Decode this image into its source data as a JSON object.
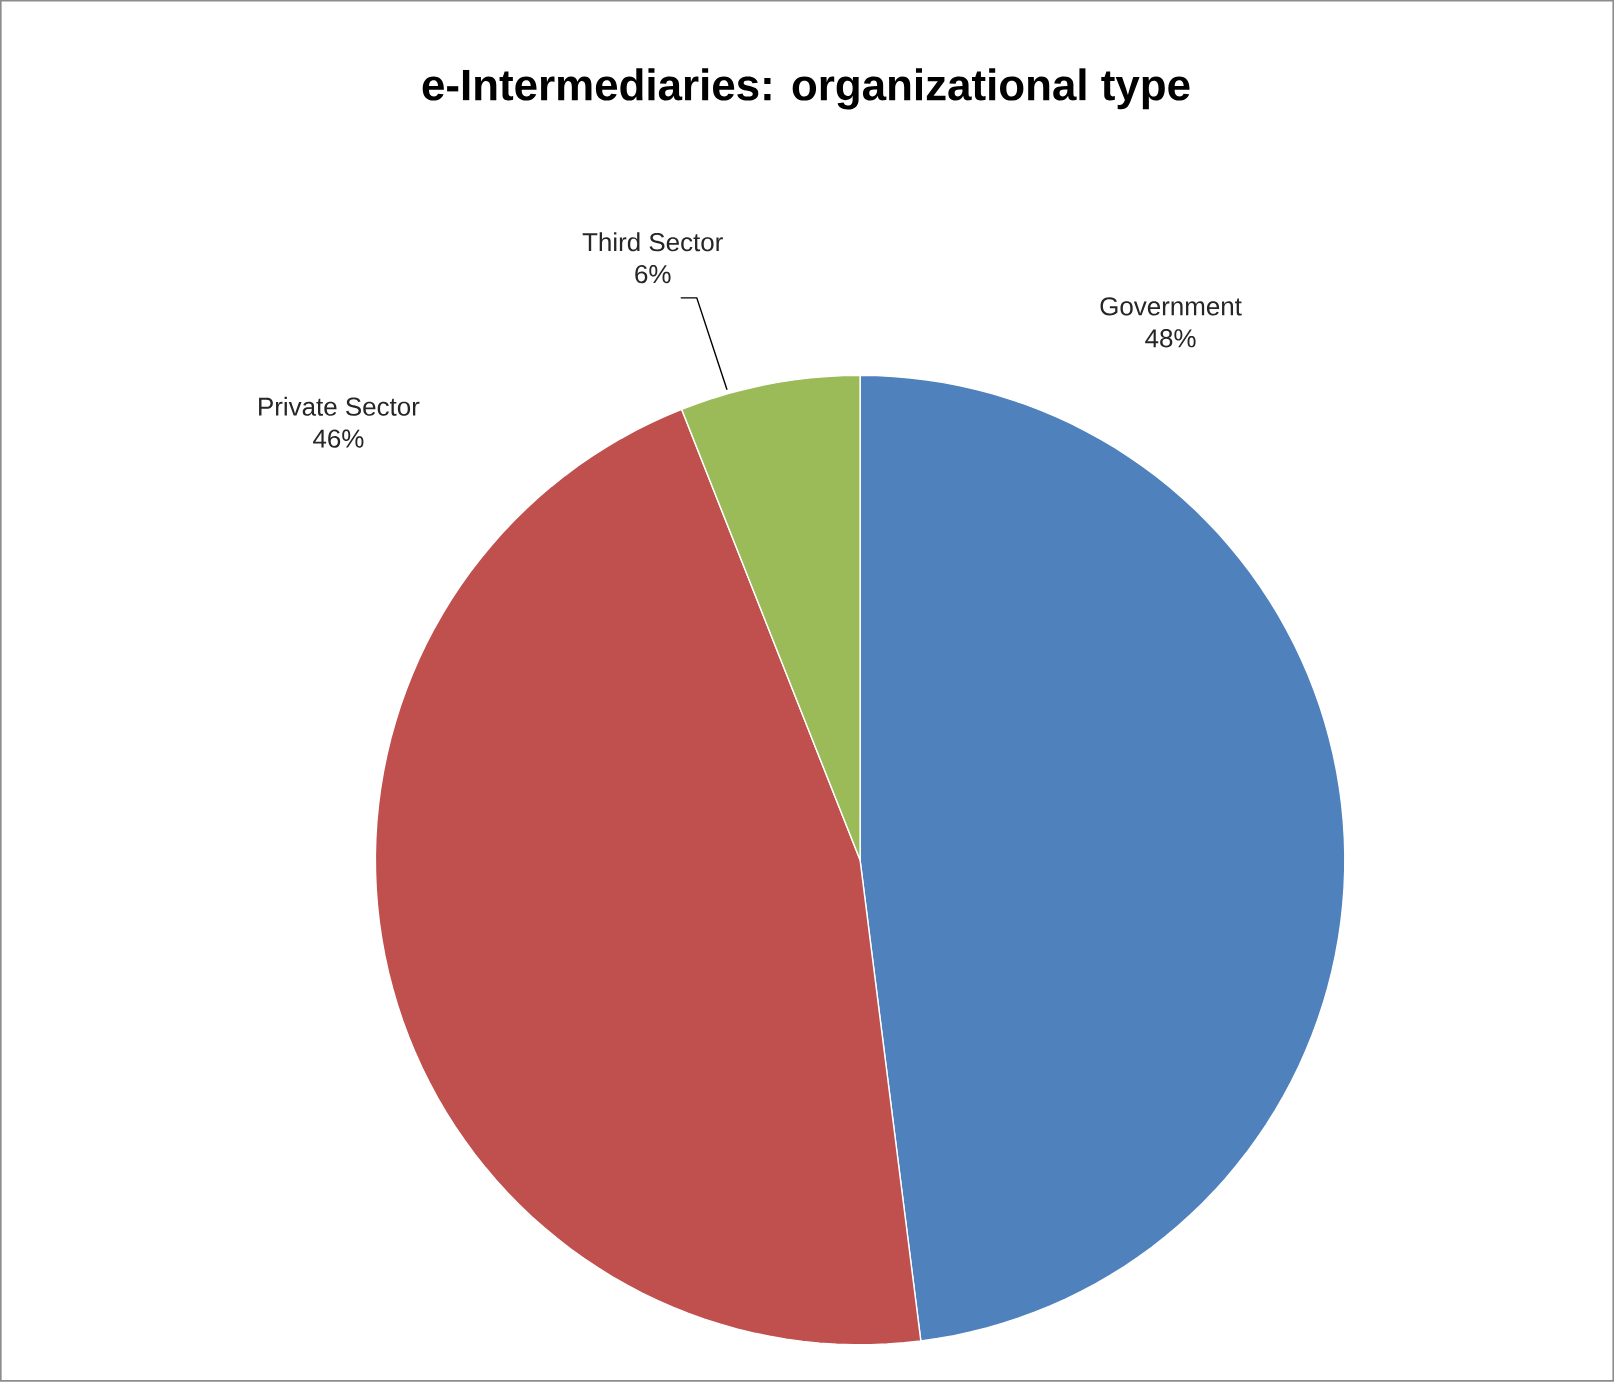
{
  "chart_data": {
    "type": "pie",
    "title": "e-Intermediaries: organizational type",
    "categories": [
      "Government",
      "Private Sector",
      "Third Sector"
    ],
    "values": [
      48,
      46,
      6
    ],
    "colors": [
      "#4f81bd",
      "#c0504d",
      "#9bbb59"
    ],
    "value_labels": [
      "48%",
      "46%",
      "6%"
    ]
  }
}
